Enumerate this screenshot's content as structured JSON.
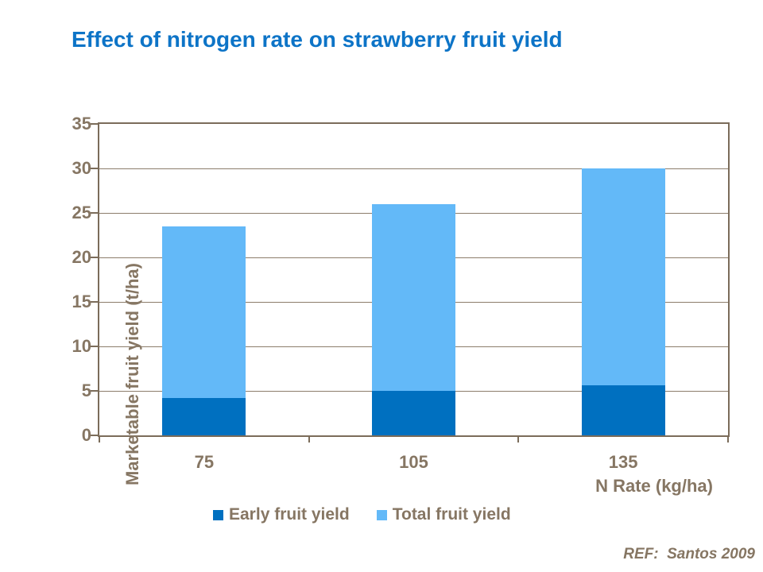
{
  "page": {
    "title": "Effect of nitrogen rate on strawberry fruit yield",
    "ref": "REF:  Santos 2009"
  },
  "chart_data": {
    "type": "bar",
    "subtype": "stacked-overlay-columns",
    "title": "Effect of nitrogen rate on strawberry fruit yield",
    "categories": [
      "75",
      "105",
      "135"
    ],
    "series": [
      {
        "name": "Early fruit yield",
        "color": "#0070c0",
        "values": [
          4.2,
          5.0,
          5.6
        ]
      },
      {
        "name": "Total fruit yield",
        "color": "#63b9f8",
        "values": [
          23.5,
          26.0,
          30.0
        ]
      }
    ],
    "xlabel": "N Rate (kg/ha)",
    "ylabel": "Marketable fruit yield (t/ha)",
    "ylim": [
      0,
      35
    ],
    "yticks": [
      0,
      5,
      10,
      15,
      20,
      25,
      30,
      35
    ],
    "grid": true,
    "legend_position": "bottom"
  },
  "colors": {
    "title_text": "#0d74c7",
    "axis_text": "#867663",
    "grid_line": "#8c7d6b",
    "frame": "#7b6c5a",
    "background": "#ffffff"
  }
}
